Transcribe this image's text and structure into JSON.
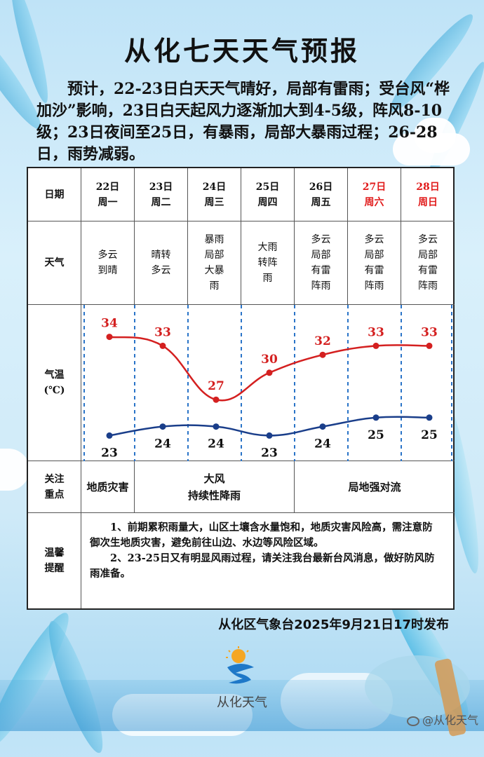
{
  "title": "从化七天天气预报",
  "intro": "预计，22-23日白天天气晴好，局部有雷雨；受台风“桦加沙”影响，23日白天起风力逐渐加大到4-5级，阵风8-10级；23日夜间至25日，有暴雨，局部大暴雨过程；26-28日，雨势减弱。",
  "table": {
    "row_labels": {
      "date": "日期",
      "weather": "天气",
      "temp_line1": "气温",
      "temp_line2": "(℃)",
      "focus_line1": "关注",
      "focus_line2": "重点",
      "tips_line1": "温馨",
      "tips_line2": "提醒"
    },
    "days": [
      {
        "date": "22日",
        "weekday": "周一",
        "weather": "多云到晴",
        "weekend": false
      },
      {
        "date": "23日",
        "weekday": "周二",
        "weather": "晴转多云",
        "weekend": false
      },
      {
        "date": "24日",
        "weekday": "周三",
        "weather": "暴雨局部大暴雨",
        "weekend": false
      },
      {
        "date": "25日",
        "weekday": "周四",
        "weather": "大雨转阵雨",
        "weekend": false
      },
      {
        "date": "26日",
        "weekday": "周五",
        "weather": "多云局部有雷阵雨",
        "weekend": false
      },
      {
        "date": "27日",
        "weekday": "周六",
        "weather": "多云局部有雷阵雨",
        "weekend": true
      },
      {
        "date": "28日",
        "weekday": "周日",
        "weather": "多云局部有雷阵雨",
        "weekend": true
      }
    ],
    "focus": [
      "地质灾害",
      "大风",
      "持续性降雨",
      "局地强对流"
    ],
    "tips": [
      "1、前期累积雨量大，山区土壤含水量饱和，地质灾害风险高，需注意防御次生地质灾害，避免前往山边、水边等风险区域。",
      "2、23-25日又有明显风雨过程，请关注我台最新台风消息，做好防风防雨准备。"
    ]
  },
  "chart_data": {
    "type": "line",
    "categories": [
      "22日",
      "23日",
      "24日",
      "25日",
      "26日",
      "27日",
      "28日"
    ],
    "series": [
      {
        "values": [
          34,
          33,
          27,
          30,
          32,
          33,
          33
        ],
        "color": "#d42020"
      },
      {
        "values": [
          23,
          24,
          24,
          23,
          24,
          25,
          25
        ],
        "color": "#1a3e8a"
      }
    ],
    "ylim": [
      21,
      36
    ]
  },
  "colors": {
    "weekend": "#e11b1b",
    "high": "#d42020",
    "low": "#1a3e8a",
    "dash": "#2a74c8"
  },
  "footer": "从化区气象台2025年9月21日17时发布",
  "logo": {
    "text": "从化天气",
    "icon": "weather-logo-icon"
  },
  "watermark": "@从化天气",
  "watermark_icon": "weibo-icon"
}
